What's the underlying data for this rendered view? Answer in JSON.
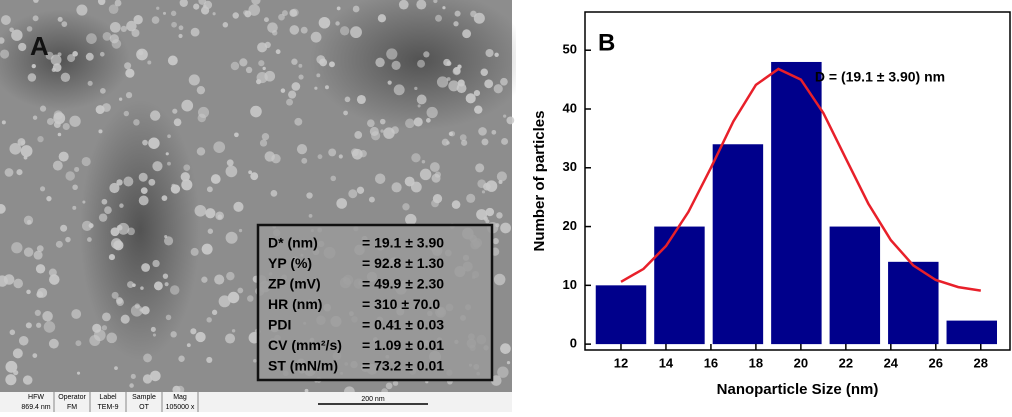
{
  "panel_a": {
    "label": "A",
    "table": {
      "rows": [
        [
          "D* (nm)",
          "= 19.1 ± 3.90"
        ],
        [
          "YP (%)",
          "= 92.8 ± 1.30"
        ],
        [
          "ZP (mV)",
          "= 49.9 ± 2.30"
        ],
        [
          "HR (nm)",
          "= 310 ± 70.0"
        ],
        [
          "PDI",
          "= 0.41 ± 0.03"
        ],
        [
          "CV (mm²/s)",
          "= 1.09 ± 0.01"
        ],
        [
          "ST (mN/m)",
          "= 73.2 ± 0.01"
        ]
      ]
    },
    "info_bar": {
      "fields": [
        [
          "HFW",
          "869.4 nm"
        ],
        [
          "Operator",
          "FM"
        ],
        [
          "Label",
          "TEM-9"
        ],
        [
          "Sample",
          "OT"
        ],
        [
          "Mag",
          "105000 x"
        ]
      ],
      "scale": "200 nm"
    }
  },
  "chart_data": {
    "type": "histogram",
    "panel_label": "B",
    "annotation": "D = (19.1 ± 3.90) nm",
    "x_label": "Nanoparticle Size (nm)",
    "y_label": "Number of particles",
    "bins": [
      10.7,
      13.3,
      15.9,
      18.5,
      21.1,
      23.7,
      26.3,
      28.9
    ],
    "values": [
      10,
      20,
      34,
      48,
      20,
      14,
      4
    ],
    "color": "#00008b",
    "fit_curve": {
      "color": "#e8202a",
      "x": [
        12,
        13,
        14,
        15,
        16,
        17,
        18,
        19,
        20,
        21,
        22,
        23,
        24,
        25,
        26,
        27,
        28
      ],
      "values": [
        10.6,
        12.8,
        16.7,
        22.5,
        30.0,
        37.9,
        44.1,
        46.8,
        45.0,
        39.3,
        31.6,
        23.9,
        17.7,
        13.4,
        10.9,
        9.7,
        9.1
      ]
    },
    "xlim": [
      10.4,
      29.3
    ],
    "ylim": [
      -1,
      56.5
    ],
    "xticks": [
      12,
      14,
      16,
      18,
      20,
      22,
      24,
      26,
      28
    ],
    "yticks": [
      0,
      10,
      20,
      30,
      40,
      50
    ]
  }
}
